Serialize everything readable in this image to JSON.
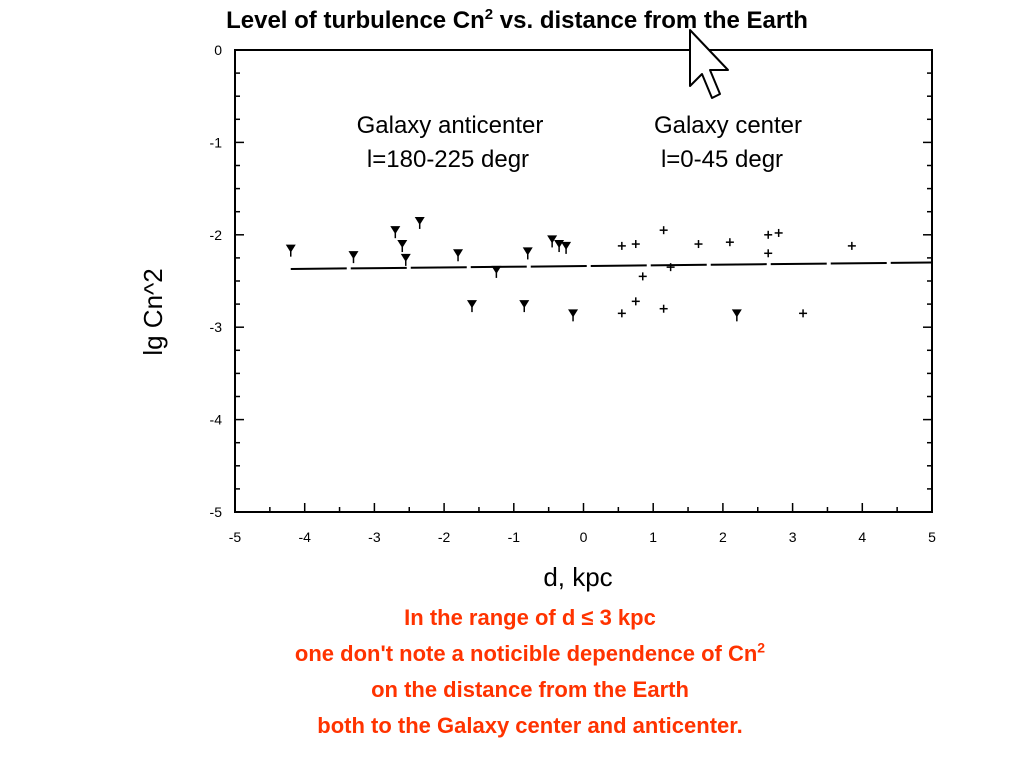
{
  "title": {
    "text": "Level of turbulence Cn",
    "sup": "2",
    "rest": " vs. distance from the Earth"
  },
  "chart_data": {
    "type": "scatter",
    "xlabel": "d, kpc",
    "ylabel": "lg Cn^2",
    "xlim": [
      -5,
      5
    ],
    "ylim": [
      -5,
      0
    ],
    "xticks": [
      "-5",
      "-4",
      "-3",
      "-2",
      "-1",
      "0",
      "1",
      "2",
      "3",
      "4",
      "5"
    ],
    "yticks": [
      "0",
      "-1",
      "-2",
      "-3",
      "-4",
      "-5"
    ],
    "annotations": [
      {
        "line1": "Galaxy anticenter",
        "line2": "l=180-225 degr"
      },
      {
        "line1": "Galaxy center",
        "line2": "l=0-45 degr"
      }
    ],
    "series": [
      {
        "marker": "triangle-down",
        "points": [
          [
            -4.2,
            -2.15
          ],
          [
            -3.3,
            -2.22
          ],
          [
            -2.7,
            -1.95
          ],
          [
            -2.6,
            -2.1
          ],
          [
            -2.55,
            -2.25
          ],
          [
            -2.35,
            -1.85
          ],
          [
            -1.8,
            -2.2
          ],
          [
            -1.6,
            -2.75
          ],
          [
            -1.25,
            -2.38
          ],
          [
            -0.85,
            -2.75
          ],
          [
            -0.8,
            -2.18
          ],
          [
            -0.45,
            -2.05
          ],
          [
            -0.35,
            -2.1
          ],
          [
            -0.25,
            -2.12
          ],
          [
            -0.15,
            -2.85
          ],
          [
            2.2,
            -2.85
          ]
        ]
      },
      {
        "marker": "plus",
        "points": [
          [
            0.55,
            -2.12
          ],
          [
            0.55,
            -2.85
          ],
          [
            0.75,
            -2.1
          ],
          [
            0.75,
            -2.72
          ],
          [
            0.85,
            -2.45
          ],
          [
            1.15,
            -1.95
          ],
          [
            1.15,
            -2.8
          ],
          [
            1.25,
            -2.35
          ],
          [
            1.65,
            -2.1
          ],
          [
            2.1,
            -2.08
          ],
          [
            2.65,
            -2.0
          ],
          [
            2.65,
            -2.2
          ],
          [
            2.8,
            -1.98
          ],
          [
            3.15,
            -2.85
          ],
          [
            3.85,
            -2.12
          ]
        ]
      }
    ],
    "trend": {
      "x": [
        -4.2,
        5.0
      ],
      "y": [
        -2.37,
        -2.3
      ]
    }
  },
  "caption": {
    "line1": "In the range of d ≤ 3 kpc",
    "line2": "one don't  note a noticible dependence of Cn",
    "line2_sup": "2",
    "line3": "on the distance from the Earth",
    "line4": "both to the Galaxy center and anticenter."
  }
}
